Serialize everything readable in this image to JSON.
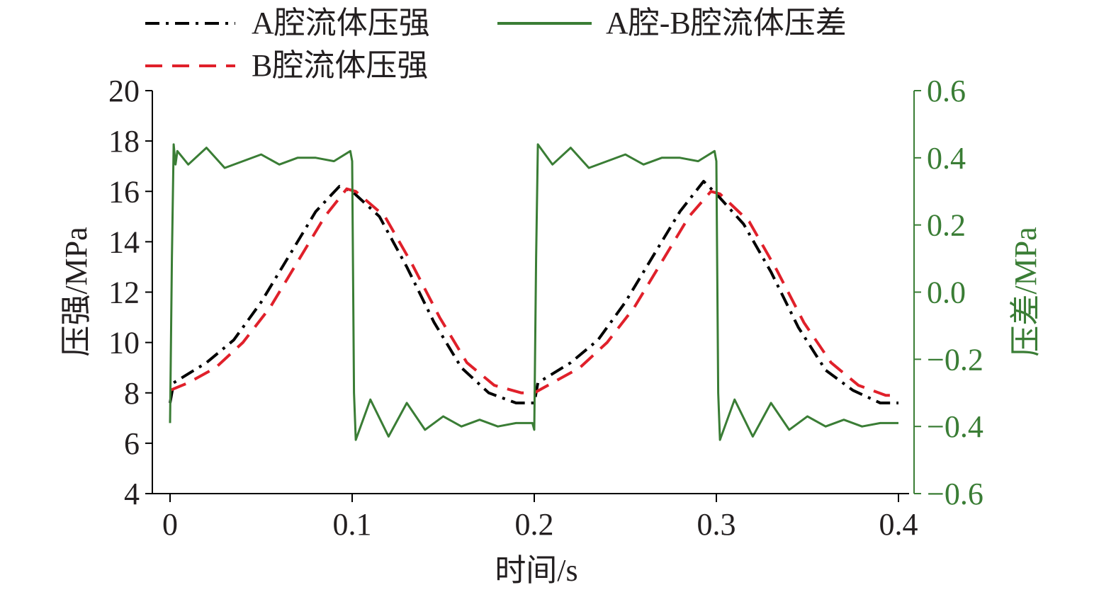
{
  "chart_data": {
    "type": "line",
    "xlabel": "时间/s",
    "ylabel": "压强/MPa",
    "y2label": "压差/MPa",
    "xlim": [
      0,
      0.4
    ],
    "ylim": [
      4,
      20
    ],
    "y2lim": [
      -0.6,
      0.6
    ],
    "xticks": [
      0,
      0.1,
      0.2,
      0.3,
      0.4
    ],
    "xtick_labels": [
      "0",
      "0.1",
      "0.2",
      "0.3",
      "0.4"
    ],
    "yticks": [
      4,
      6,
      8,
      10,
      12,
      14,
      16,
      18,
      20
    ],
    "ytick_labels": [
      "4",
      "6",
      "8",
      "10",
      "12",
      "14",
      "16",
      "18",
      "20"
    ],
    "y2ticks": [
      -0.6,
      -0.4,
      -0.2,
      0.0,
      0.2,
      0.4,
      0.6
    ],
    "y2tick_labels": [
      "−0.6",
      "−0.4",
      "−0.2",
      "0.0",
      "0.2",
      "0.4",
      "0.6"
    ],
    "grid": false,
    "legend_position": "top",
    "colors": {
      "axis": "#000000",
      "axis2": "#3a7d35",
      "series_a": "#000000",
      "series_b": "#e0202a",
      "series_diff": "#3a7d35"
    },
    "series": [
      {
        "name": "A腔流体压强",
        "axis": "left",
        "style": "dash-dot",
        "color": "#000000",
        "x": [
          0,
          0.002,
          0.02,
          0.035,
          0.05,
          0.065,
          0.08,
          0.093,
          0.1,
          0.115,
          0.13,
          0.145,
          0.16,
          0.175,
          0.19,
          0.2,
          0.202,
          0.22,
          0.235,
          0.25,
          0.265,
          0.28,
          0.293,
          0.3,
          0.315,
          0.33,
          0.345,
          0.36,
          0.375,
          0.39,
          0.4
        ],
        "y": [
          7.6,
          8.4,
          9.2,
          10.1,
          11.6,
          13.4,
          15.2,
          16.2,
          16.0,
          15.0,
          13.0,
          10.8,
          9.0,
          8.0,
          7.6,
          7.6,
          8.4,
          9.2,
          10.1,
          11.6,
          13.4,
          15.2,
          16.4,
          15.9,
          14.7,
          12.8,
          10.6,
          8.9,
          8.1,
          7.6,
          7.6
        ]
      },
      {
        "name": "B腔流体压强",
        "axis": "left",
        "style": "dashed",
        "color": "#e0202a",
        "x": [
          0,
          0.01,
          0.025,
          0.04,
          0.055,
          0.07,
          0.085,
          0.097,
          0.102,
          0.118,
          0.133,
          0.148,
          0.163,
          0.178,
          0.193,
          0.2,
          0.21,
          0.225,
          0.24,
          0.255,
          0.27,
          0.285,
          0.297,
          0.302,
          0.318,
          0.333,
          0.348,
          0.363,
          0.378,
          0.393,
          0.4
        ],
        "y": [
          8.1,
          8.4,
          9.0,
          10.0,
          11.4,
          13.2,
          15.0,
          16.1,
          16.0,
          15.0,
          13.1,
          11.0,
          9.2,
          8.3,
          8.0,
          8.0,
          8.4,
          9.0,
          10.0,
          11.4,
          13.2,
          15.0,
          16.0,
          15.9,
          14.8,
          12.9,
          10.8,
          9.2,
          8.3,
          7.9,
          7.9
        ]
      },
      {
        "name": "A腔-B腔流体压差",
        "axis": "right",
        "style": "solid",
        "color": "#3a7d35",
        "x": [
          0,
          0.001,
          0.002,
          0.003,
          0.004,
          0.01,
          0.02,
          0.03,
          0.04,
          0.05,
          0.06,
          0.07,
          0.08,
          0.09,
          0.099,
          0.1,
          0.101,
          0.102,
          0.11,
          0.12,
          0.13,
          0.14,
          0.15,
          0.16,
          0.17,
          0.18,
          0.19,
          0.199,
          0.2,
          0.201,
          0.202,
          0.21,
          0.22,
          0.23,
          0.24,
          0.25,
          0.26,
          0.27,
          0.28,
          0.29,
          0.299,
          0.3,
          0.301,
          0.302,
          0.31,
          0.32,
          0.33,
          0.34,
          0.35,
          0.36,
          0.37,
          0.38,
          0.39,
          0.4
        ],
        "y": [
          -0.39,
          0.1,
          0.44,
          0.38,
          0.42,
          0.38,
          0.43,
          0.37,
          0.39,
          0.41,
          0.38,
          0.4,
          0.4,
          0.39,
          0.42,
          0.39,
          -0.3,
          -0.44,
          -0.32,
          -0.43,
          -0.33,
          -0.41,
          -0.37,
          -0.4,
          -0.38,
          -0.4,
          -0.39,
          -0.39,
          -0.41,
          0.1,
          0.44,
          0.38,
          0.43,
          0.37,
          0.39,
          0.41,
          0.38,
          0.4,
          0.4,
          0.39,
          0.42,
          0.39,
          -0.3,
          -0.44,
          -0.32,
          -0.43,
          -0.33,
          -0.41,
          -0.37,
          -0.4,
          -0.38,
          -0.4,
          -0.39,
          -0.39
        ]
      }
    ]
  }
}
